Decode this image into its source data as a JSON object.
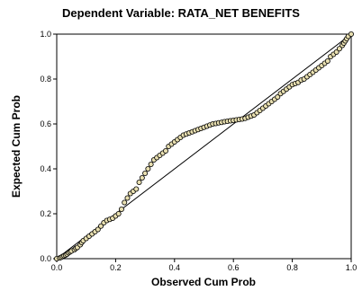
{
  "chart_data": {
    "type": "scatter",
    "title": "Dependent Variable: RATA_NET BENEFITS",
    "xlabel": "Observed Cum Prob",
    "ylabel": "Expected Cum Prob",
    "xlim": [
      0.0,
      1.0
    ],
    "ylim": [
      0.0,
      1.0
    ],
    "x_ticks": [
      "0.0",
      "0.2",
      "0.4",
      "0.6",
      "0.8",
      "1.0"
    ],
    "y_ticks": [
      "0.0",
      "0.2",
      "0.4",
      "0.6",
      "0.8",
      "1.0"
    ],
    "reference_line": {
      "from": [
        0,
        0
      ],
      "to": [
        1,
        1
      ]
    },
    "grid": false,
    "legend": "none",
    "colors": {
      "point_fill": "#e8dfb0",
      "point_stroke": "#000000",
      "line": "#000000"
    },
    "series": [
      {
        "points": [
          [
            0.0,
            0.0
          ],
          [
            0.01,
            0.003
          ],
          [
            0.015,
            0.006
          ],
          [
            0.02,
            0.01
          ],
          [
            0.025,
            0.013
          ],
          [
            0.03,
            0.016
          ],
          [
            0.035,
            0.02
          ],
          [
            0.04,
            0.026
          ],
          [
            0.045,
            0.03
          ],
          [
            0.05,
            0.034
          ],
          [
            0.06,
            0.04
          ],
          [
            0.065,
            0.046
          ],
          [
            0.07,
            0.05
          ],
          [
            0.08,
            0.062
          ],
          [
            0.085,
            0.072
          ],
          [
            0.09,
            0.08
          ],
          [
            0.1,
            0.09
          ],
          [
            0.11,
            0.1
          ],
          [
            0.12,
            0.11
          ],
          [
            0.13,
            0.12
          ],
          [
            0.14,
            0.13
          ],
          [
            0.15,
            0.145
          ],
          [
            0.16,
            0.16
          ],
          [
            0.17,
            0.17
          ],
          [
            0.18,
            0.175
          ],
          [
            0.19,
            0.18
          ],
          [
            0.2,
            0.19
          ],
          [
            0.21,
            0.2
          ],
          [
            0.22,
            0.22
          ],
          [
            0.23,
            0.25
          ],
          [
            0.24,
            0.27
          ],
          [
            0.25,
            0.29
          ],
          [
            0.26,
            0.3
          ],
          [
            0.27,
            0.31
          ],
          [
            0.28,
            0.34
          ],
          [
            0.29,
            0.36
          ],
          [
            0.3,
            0.38
          ],
          [
            0.31,
            0.4
          ],
          [
            0.32,
            0.42
          ],
          [
            0.33,
            0.44
          ],
          [
            0.34,
            0.45
          ],
          [
            0.35,
            0.46
          ],
          [
            0.36,
            0.47
          ],
          [
            0.37,
            0.48
          ],
          [
            0.38,
            0.5
          ],
          [
            0.39,
            0.51
          ],
          [
            0.4,
            0.52
          ],
          [
            0.41,
            0.53
          ],
          [
            0.42,
            0.54
          ],
          [
            0.43,
            0.55
          ],
          [
            0.44,
            0.555
          ],
          [
            0.45,
            0.56
          ],
          [
            0.46,
            0.565
          ],
          [
            0.47,
            0.57
          ],
          [
            0.48,
            0.575
          ],
          [
            0.49,
            0.58
          ],
          [
            0.5,
            0.585
          ],
          [
            0.51,
            0.59
          ],
          [
            0.52,
            0.595
          ],
          [
            0.53,
            0.6
          ],
          [
            0.54,
            0.602
          ],
          [
            0.55,
            0.605
          ],
          [
            0.56,
            0.607
          ],
          [
            0.57,
            0.61
          ],
          [
            0.58,
            0.612
          ],
          [
            0.59,
            0.614
          ],
          [
            0.6,
            0.616
          ],
          [
            0.61,
            0.618
          ],
          [
            0.62,
            0.62
          ],
          [
            0.63,
            0.622
          ],
          [
            0.64,
            0.625
          ],
          [
            0.65,
            0.63
          ],
          [
            0.66,
            0.635
          ],
          [
            0.67,
            0.64
          ],
          [
            0.68,
            0.65
          ],
          [
            0.69,
            0.66
          ],
          [
            0.7,
            0.67
          ],
          [
            0.71,
            0.68
          ],
          [
            0.72,
            0.69
          ],
          [
            0.73,
            0.7
          ],
          [
            0.74,
            0.71
          ],
          [
            0.75,
            0.72
          ],
          [
            0.76,
            0.735
          ],
          [
            0.77,
            0.745
          ],
          [
            0.78,
            0.755
          ],
          [
            0.79,
            0.765
          ],
          [
            0.8,
            0.775
          ],
          [
            0.81,
            0.78
          ],
          [
            0.82,
            0.785
          ],
          [
            0.83,
            0.795
          ],
          [
            0.84,
            0.8
          ],
          [
            0.85,
            0.81
          ],
          [
            0.86,
            0.82
          ],
          [
            0.87,
            0.83
          ],
          [
            0.88,
            0.84
          ],
          [
            0.89,
            0.85
          ],
          [
            0.9,
            0.86
          ],
          [
            0.91,
            0.87
          ],
          [
            0.92,
            0.88
          ],
          [
            0.93,
            0.9
          ],
          [
            0.94,
            0.91
          ],
          [
            0.95,
            0.92
          ],
          [
            0.96,
            0.935
          ],
          [
            0.97,
            0.95
          ],
          [
            0.975,
            0.96
          ],
          [
            0.98,
            0.97
          ],
          [
            0.985,
            0.98
          ],
          [
            0.99,
            0.99
          ],
          [
            1.0,
            1.0
          ]
        ]
      }
    ]
  }
}
